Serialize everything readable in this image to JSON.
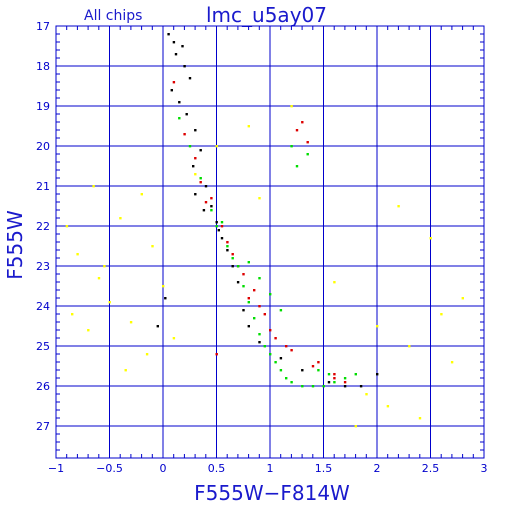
{
  "chart_data": {
    "type": "scatter",
    "title": "lmc_u5ay07",
    "subtitle": "All chips",
    "xlabel": "F555W−F814W",
    "ylabel": "F555W",
    "xlim": [
      -1,
      3
    ],
    "ylim": [
      27.8,
      17
    ],
    "y_inverted": true,
    "x_ticks": [
      -1,
      -0.5,
      0,
      0.5,
      1,
      1.5,
      2,
      2.5,
      3
    ],
    "x_tick_labels": [
      "−1",
      "−0.5",
      "0",
      "0.5",
      "1",
      "1.5",
      "2",
      "2.5",
      "3"
    ],
    "y_ticks": [
      17,
      18,
      19,
      20,
      21,
      22,
      23,
      24,
      25,
      26,
      27
    ],
    "y_tick_labels": [
      "17",
      "18",
      "19",
      "20",
      "21",
      "22",
      "23",
      "24",
      "25",
      "26",
      "27"
    ],
    "grid": true,
    "colors": {
      "axis": "#0000cc",
      "grid": "#0000cc",
      "text": "#1a1acc",
      "black_points": "#000000",
      "red_points": "#dd0000",
      "green_points": "#00dd00",
      "yellow_points": "#ffff00"
    },
    "series": [
      {
        "color": "#000000",
        "x": [
          0.05,
          0.1,
          0.12,
          0.18,
          0.2,
          0.25,
          0.08,
          0.15,
          0.22,
          0.3,
          0.35,
          0.28,
          0.4,
          0.45,
          0.5,
          0.55,
          0.6,
          0.65,
          0.3,
          0.38,
          0.52,
          0.7,
          0.75,
          0.8,
          0.9,
          1.1,
          1.3,
          1.55,
          1.7,
          1.85,
          2.0,
          -0.05,
          0.02
        ],
        "y": [
          17.2,
          17.4,
          17.7,
          17.5,
          18.0,
          18.3,
          18.6,
          18.9,
          19.2,
          19.6,
          20.1,
          20.5,
          21.0,
          21.5,
          21.9,
          22.3,
          22.6,
          23.0,
          21.2,
          21.6,
          22.1,
          23.4,
          24.1,
          24.5,
          24.9,
          25.3,
          25.6,
          25.9,
          26.0,
          26.0,
          25.7,
          24.5,
          23.8
        ]
      },
      {
        "color": "#dd0000",
        "x": [
          0.1,
          0.2,
          0.3,
          0.45,
          0.6,
          0.75,
          0.9,
          1.0,
          1.2,
          1.4,
          1.6,
          1.7,
          1.25,
          1.3,
          0.55,
          0.65,
          0.85,
          0.95,
          1.05,
          1.15,
          1.45,
          1.6,
          0.35,
          0.4,
          0.7,
          0.8,
          1.35,
          0.5
        ],
        "y": [
          18.4,
          19.7,
          20.3,
          21.3,
          22.4,
          23.2,
          24.0,
          24.6,
          25.1,
          25.5,
          25.8,
          25.9,
          19.6,
          19.4,
          22.0,
          22.7,
          23.6,
          24.2,
          24.8,
          25.0,
          25.4,
          25.7,
          20.9,
          21.4,
          23.0,
          23.8,
          19.9,
          25.2
        ]
      },
      {
        "color": "#00dd00",
        "x": [
          0.15,
          0.25,
          0.35,
          0.45,
          0.5,
          0.6,
          0.7,
          0.75,
          0.8,
          0.85,
          0.9,
          0.95,
          1.0,
          1.05,
          1.1,
          1.15,
          1.2,
          1.3,
          1.4,
          1.5,
          1.6,
          1.7,
          1.8,
          1.2,
          1.25,
          1.35,
          0.65,
          0.9,
          1.0,
          1.1,
          0.55,
          0.8,
          1.45,
          1.55
        ],
        "y": [
          19.3,
          20.0,
          20.8,
          21.6,
          22.0,
          22.5,
          23.0,
          23.5,
          23.9,
          24.3,
          24.7,
          25.0,
          25.2,
          25.4,
          25.6,
          25.8,
          25.9,
          26.0,
          26.0,
          26.0,
          25.9,
          25.8,
          25.7,
          20.0,
          20.5,
          20.2,
          22.8,
          23.3,
          23.7,
          24.1,
          21.9,
          22.9,
          25.6,
          25.7
        ]
      },
      {
        "color": "#ffff00",
        "x": [
          -0.9,
          -0.8,
          -0.6,
          -0.5,
          -0.3,
          -0.2,
          -0.7,
          -0.4,
          -0.85,
          -0.55,
          -0.1,
          0.3,
          0.5,
          0.8,
          1.2,
          1.6,
          2.0,
          2.3,
          2.6,
          2.8,
          2.5,
          2.2,
          1.9,
          2.7,
          0.1,
          0.0,
          -0.15,
          -0.35,
          -0.65,
          2.1,
          2.4,
          1.8,
          0.9
        ],
        "y": [
          22.0,
          22.7,
          23.3,
          23.9,
          24.4,
          21.2,
          24.6,
          21.8,
          24.2,
          23.0,
          22.5,
          20.7,
          20.0,
          19.5,
          19.0,
          23.4,
          24.5,
          25.0,
          24.2,
          23.8,
          22.3,
          21.5,
          26.2,
          25.4,
          24.8,
          23.5,
          25.2,
          25.6,
          21.0,
          26.5,
          26.8,
          27.0,
          21.3
        ]
      }
    ]
  }
}
